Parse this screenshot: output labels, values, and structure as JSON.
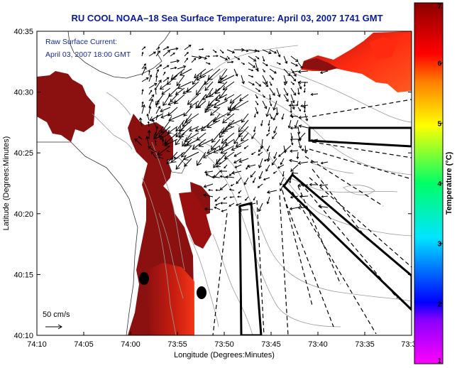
{
  "title": "RU COOL  NOAA–18  Sea Surface Temperature:  April 03, 2007 1741 GMT",
  "overlay": {
    "line1": "Raw Surface Current:",
    "line2": "April 03, 2007 18:00 GMT"
  },
  "scale_label": "50 cm/s",
  "xaxis": {
    "label": "Longitude (Degrees:Minutes)",
    "ticks": [
      "74:10",
      "74:05",
      "74:00",
      "73:55",
      "73:50",
      "73:45",
      "73:40",
      "73:35",
      "73:3"
    ]
  },
  "yaxis": {
    "label": "Latitude (Degrees:Minutes)",
    "ticks": [
      "40:35",
      "40:30",
      "40:25",
      "40:20",
      "40:15",
      "40:10"
    ]
  },
  "colorbar": {
    "label": "Temperature (°C)",
    "ticks": [
      "1",
      "2",
      "3",
      "4",
      "5",
      "6",
      "7"
    ],
    "colors": [
      "#ff00ff",
      "#0000ff",
      "#00e5ff",
      "#00ff66",
      "#ffff00",
      "#ff8000",
      "#ff0000",
      "#8b0000"
    ]
  },
  "colors": {
    "title": "#0a1aa0",
    "sst_dark": "#8b1010",
    "sst_warm": "#ff2a1a",
    "land": "#ffffff",
    "contour": "#9a9a9a"
  }
}
